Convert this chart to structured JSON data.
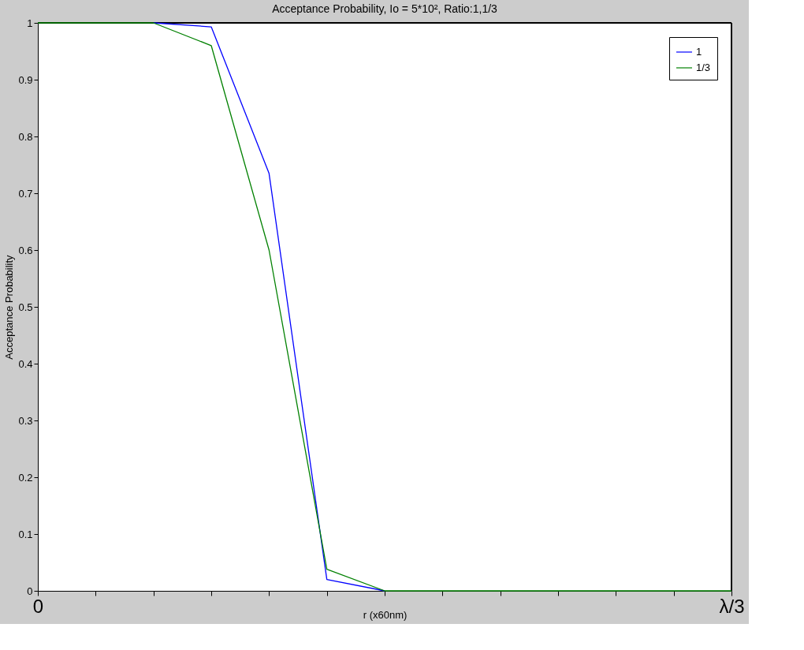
{
  "chart_data": {
    "type": "line",
    "title": "Acceptance Probability, Io = 5*10², Ratio:1,1/3",
    "xlabel": "r (x60nm)",
    "ylabel": "Acceptance Probability",
    "categories": [
      "0",
      null,
      null,
      null,
      null,
      null,
      null,
      null,
      null,
      null,
      null,
      null,
      "λ/3"
    ],
    "series": [
      {
        "name": "1",
        "color": "#0000ff",
        "values": [
          null,
          null,
          1,
          0.993,
          0.735,
          0.02,
          0,
          null,
          null,
          null,
          null,
          null,
          null
        ]
      },
      {
        "name": "1/3",
        "color": "#008000",
        "values": [
          1,
          1,
          1,
          0.96,
          0.6,
          0.038,
          0,
          0,
          0,
          0,
          0,
          0,
          0
        ]
      }
    ],
    "ylim": [
      0,
      1
    ],
    "yticks": [
      0,
      0.1,
      0.2,
      0.3,
      0.4,
      0.5,
      0.6,
      0.7,
      0.8,
      0.9,
      1
    ],
    "grid": false,
    "legend": "top right",
    "marker": "none",
    "line_style": "solid"
  }
}
